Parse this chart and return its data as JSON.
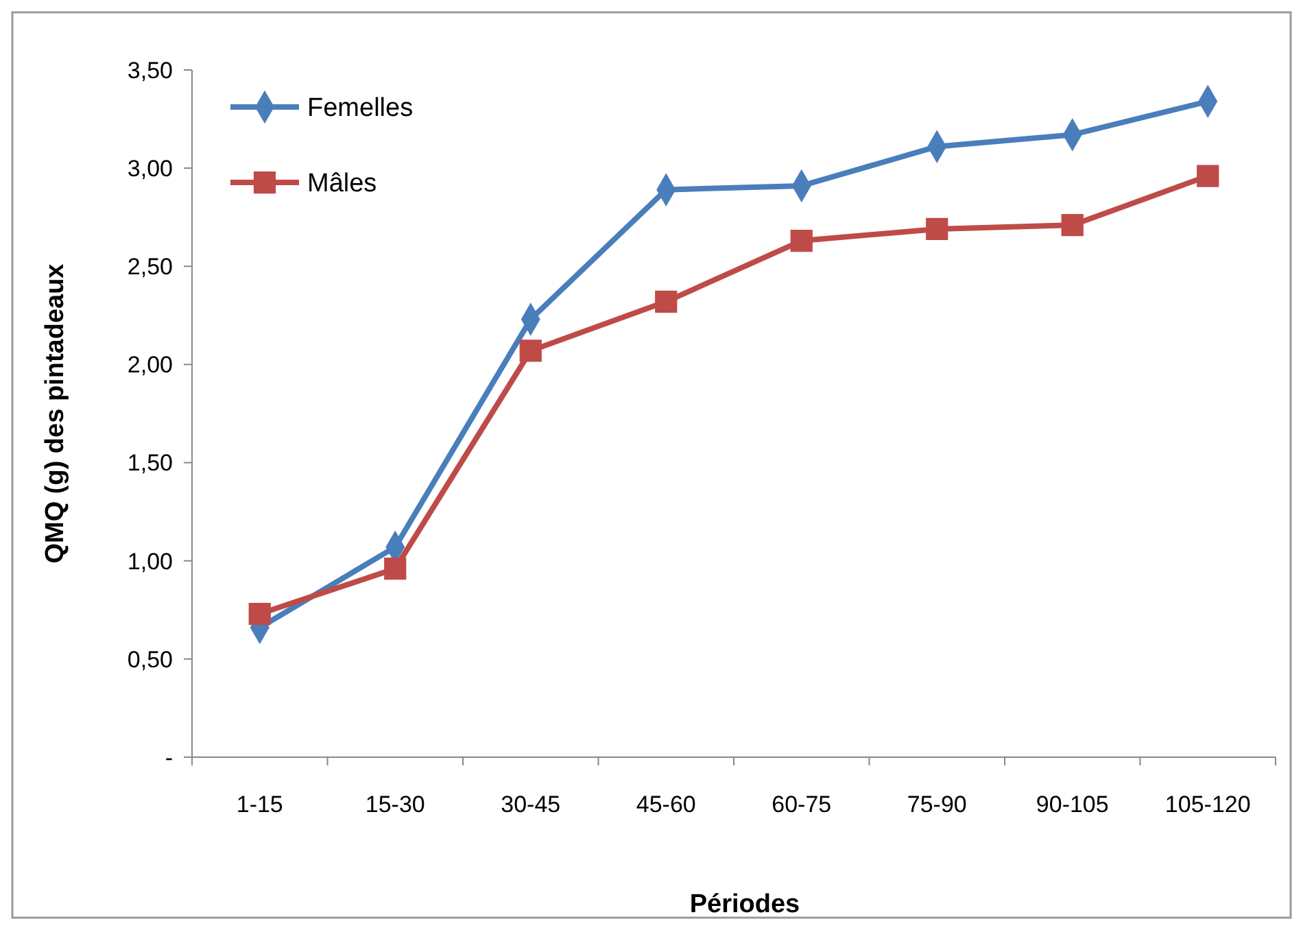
{
  "chart_data": {
    "type": "line",
    "xlabel": "Périodes",
    "ylabel": "QMQ (g) des pintadeaux",
    "categories": [
      "1-15",
      "15-30",
      "30-45",
      "45-60",
      "60-75",
      "75-90",
      "90-105",
      "105-120"
    ],
    "series": [
      {
        "name": "Femelles",
        "color": "#4a7ebb",
        "marker": "diamond",
        "values": [
          0.66,
          1.07,
          2.23,
          2.89,
          2.91,
          3.11,
          3.17,
          3.34
        ]
      },
      {
        "name": "Mâles",
        "color": "#be4b48",
        "marker": "square",
        "values": [
          0.73,
          0.96,
          2.07,
          2.32,
          2.63,
          2.69,
          2.71,
          2.96
        ]
      }
    ],
    "ylim": [
      0,
      3.5
    ],
    "yticks": [
      {
        "value": 0,
        "label": "-"
      },
      {
        "value": 0.5,
        "label": "0,50"
      },
      {
        "value": 1,
        "label": "1,00"
      },
      {
        "value": 1.5,
        "label": "1,50"
      },
      {
        "value": 2,
        "label": "2,00"
      },
      {
        "value": 2.5,
        "label": "2,50"
      },
      {
        "value": 3,
        "label": "3,00"
      },
      {
        "value": 3.5,
        "label": "3,50"
      }
    ],
    "grid": false,
    "legend": "top left"
  }
}
